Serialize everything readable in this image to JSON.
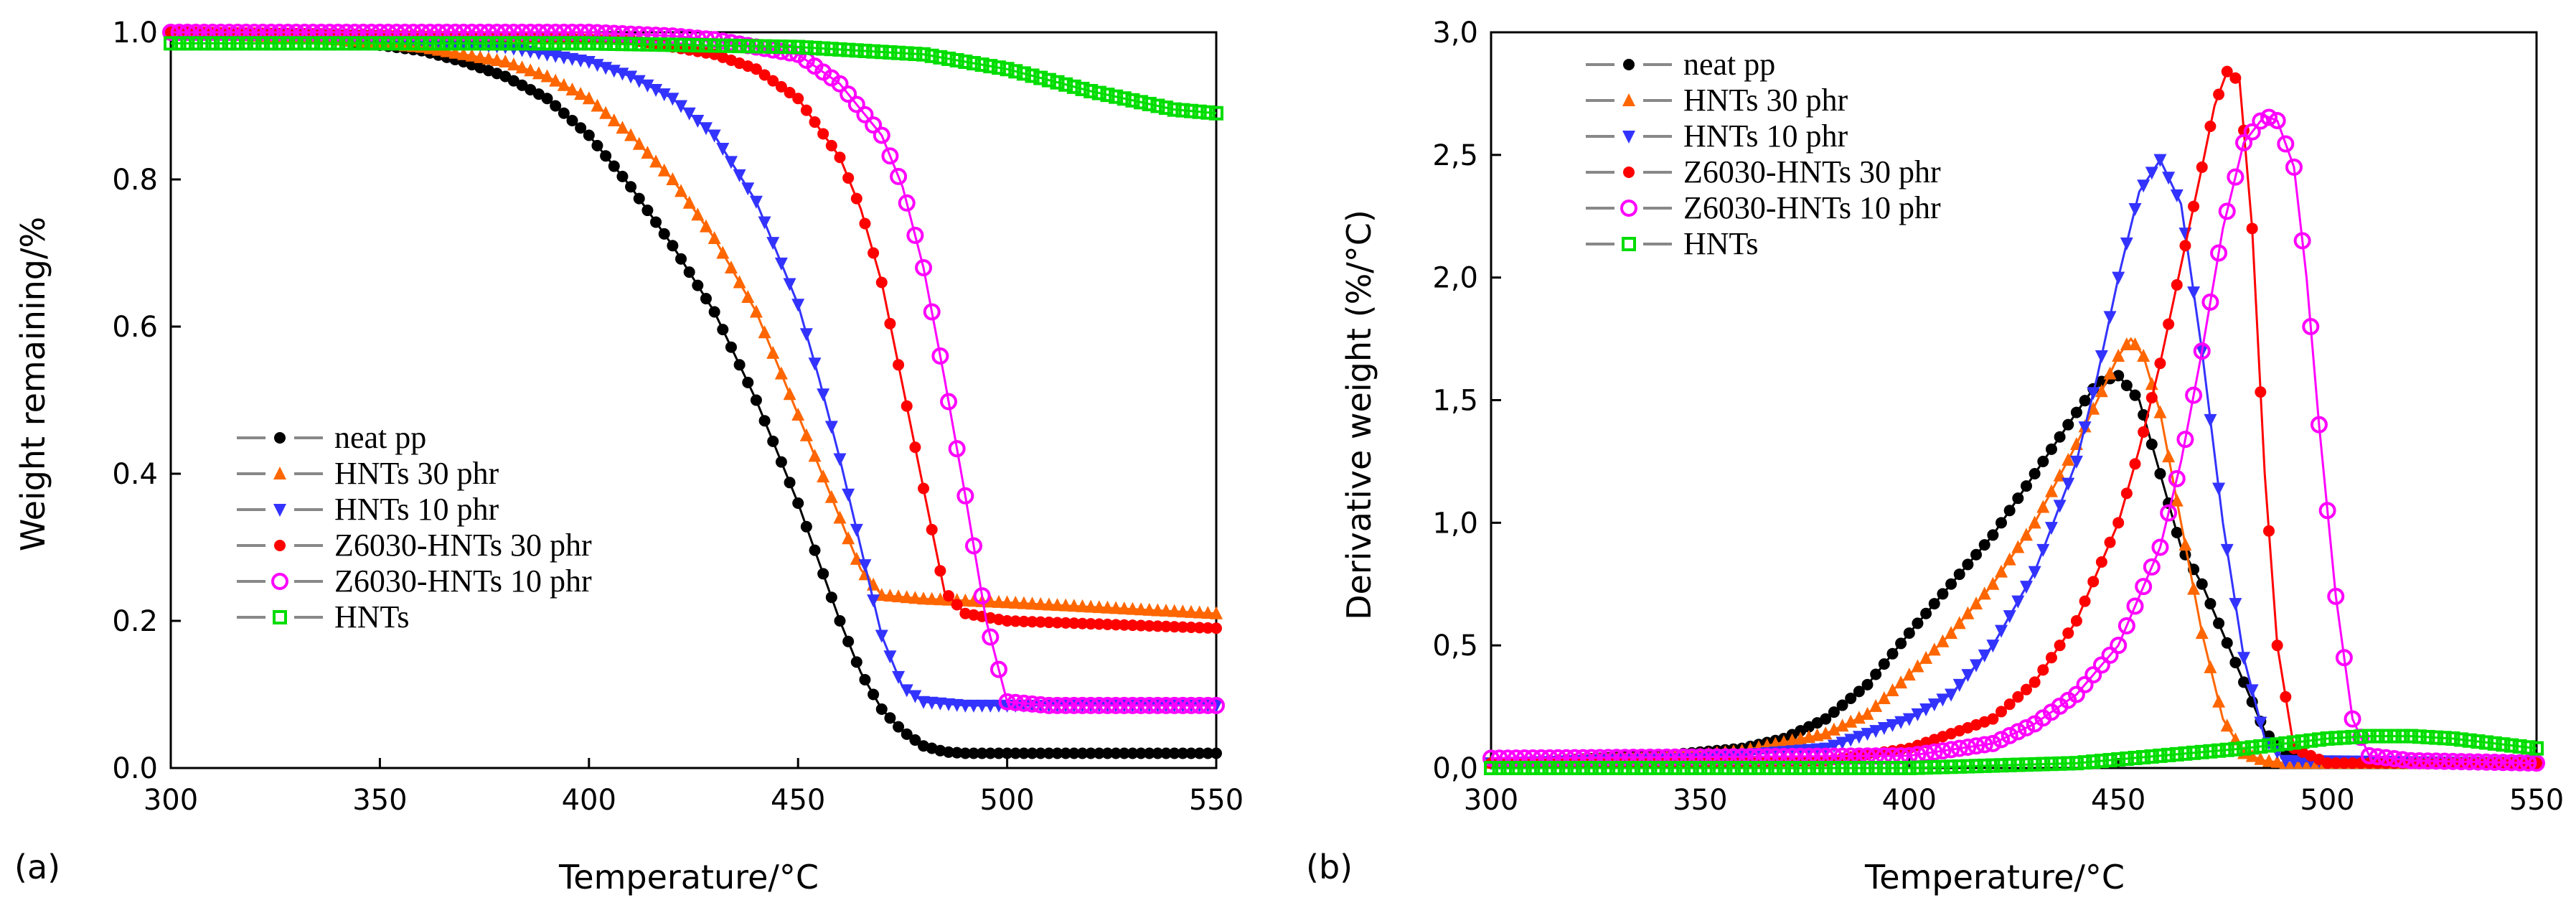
{
  "chart_data": [
    {
      "type": "line",
      "panel_label": "(a)",
      "xlabel": "Temperature/°C",
      "ylabel": "Weight remaining/%",
      "xlim": [
        300,
        550
      ],
      "ylim": [
        0.0,
        1.0
      ],
      "x_ticks": [
        300,
        350,
        400,
        450,
        500,
        550
      ],
      "x_tick_labels": [
        "300",
        "350",
        "400",
        "450",
        "500",
        "550"
      ],
      "y_ticks": [
        0.0,
        0.2,
        0.4,
        0.6,
        0.8,
        1.0
      ],
      "y_tick_labels": [
        "0.0",
        "0.2",
        "0.4",
        "0.6",
        "0.8",
        "1.0"
      ],
      "legend_position": "center-left",
      "series": [
        {
          "name": "neat pp",
          "color": "#000000",
          "marker": "circle",
          "x": [
            300,
            320,
            340,
            360,
            370,
            380,
            390,
            400,
            410,
            420,
            430,
            440,
            450,
            455,
            460,
            465,
            470,
            475,
            480,
            485,
            490,
            500,
            520,
            550
          ],
          "y": [
            1.0,
            0.995,
            0.99,
            0.975,
            0.96,
            0.94,
            0.91,
            0.86,
            0.79,
            0.71,
            0.62,
            0.5,
            0.36,
            0.28,
            0.2,
            0.13,
            0.08,
            0.05,
            0.03,
            0.022,
            0.02,
            0.02,
            0.02,
            0.02
          ]
        },
        {
          "name": "HNTs 30 phr",
          "color": "#ff6600",
          "marker": "triangle-up",
          "x": [
            300,
            340,
            360,
            380,
            390,
            400,
            410,
            420,
            430,
            440,
            450,
            460,
            465,
            470,
            480,
            500,
            550
          ],
          "y": [
            1.0,
            0.99,
            0.98,
            0.96,
            0.94,
            0.91,
            0.86,
            0.8,
            0.72,
            0.62,
            0.48,
            0.34,
            0.27,
            0.235,
            0.23,
            0.225,
            0.21
          ]
        },
        {
          "name": "HNTs 10 phr",
          "color": "#3333ff",
          "marker": "triangle-down",
          "x": [
            300,
            350,
            380,
            400,
            410,
            420,
            430,
            440,
            450,
            455,
            460,
            465,
            470,
            475,
            480,
            490,
            500,
            550
          ],
          "y": [
            1.0,
            0.995,
            0.98,
            0.96,
            0.94,
            0.91,
            0.86,
            0.77,
            0.63,
            0.53,
            0.42,
            0.3,
            0.18,
            0.11,
            0.09,
            0.085,
            0.085,
            0.085
          ]
        },
        {
          "name": "Z6030-HNTs 30 phr",
          "color": "#ff0000",
          "marker": "circle",
          "x": [
            300,
            380,
            410,
            420,
            430,
            440,
            450,
            460,
            465,
            470,
            475,
            480,
            485,
            490,
            500,
            550
          ],
          "y": [
            1.0,
            0.995,
            0.99,
            0.98,
            0.97,
            0.95,
            0.91,
            0.83,
            0.76,
            0.66,
            0.52,
            0.38,
            0.24,
            0.21,
            0.2,
            0.19
          ]
        },
        {
          "name": "Z6030-HNTs 10 phr",
          "color": "#ff00ff",
          "marker": "circle-open",
          "x": [
            300,
            400,
            420,
            430,
            440,
            450,
            460,
            470,
            475,
            480,
            485,
            490,
            495,
            500,
            510,
            550
          ],
          "y": [
            1.0,
            1.0,
            0.995,
            0.99,
            0.98,
            0.97,
            0.93,
            0.86,
            0.79,
            0.68,
            0.53,
            0.37,
            0.2,
            0.09,
            0.085,
            0.085
          ]
        },
        {
          "name": "HNTs",
          "color": "#00dd00",
          "marker": "square-open",
          "x": [
            300,
            350,
            400,
            450,
            480,
            500,
            520,
            540,
            550
          ],
          "y": [
            0.985,
            0.985,
            0.985,
            0.98,
            0.97,
            0.95,
            0.92,
            0.895,
            0.89
          ]
        }
      ]
    },
    {
      "type": "line",
      "panel_label": "(b)",
      "xlabel": "Temperature/°C",
      "ylabel": "Derivative weight (%/°C)",
      "xlim": [
        300,
        550
      ],
      "ylim": [
        0.0,
        3.0
      ],
      "x_ticks": [
        300,
        350,
        400,
        450,
        500,
        550
      ],
      "x_tick_labels": [
        "300",
        "350",
        "400",
        "450",
        "500",
        "550"
      ],
      "y_ticks": [
        0.0,
        0.5,
        1.0,
        1.5,
        2.0,
        2.5,
        3.0
      ],
      "y_tick_labels": [
        "0,0",
        "0,5",
        "1,0",
        "1,5",
        "2,0",
        "2,5",
        "3,0"
      ],
      "legend_position": "top-left",
      "series": [
        {
          "name": "neat pp",
          "color": "#000000",
          "marker": "circle",
          "x": [
            300,
            340,
            360,
            370,
            380,
            390,
            400,
            410,
            420,
            430,
            440,
            445,
            450,
            455,
            460,
            465,
            470,
            475,
            480,
            485,
            490,
            500,
            550
          ],
          "y": [
            0.02,
            0.05,
            0.08,
            0.12,
            0.2,
            0.34,
            0.55,
            0.75,
            0.95,
            1.2,
            1.45,
            1.57,
            1.6,
            1.5,
            1.2,
            0.9,
            0.75,
            0.55,
            0.35,
            0.15,
            0.05,
            0.02,
            0.02
          ]
        },
        {
          "name": "HNTs 30 phr",
          "color": "#ff6600",
          "marker": "triangle-up",
          "x": [
            300,
            340,
            360,
            380,
            390,
            400,
            410,
            420,
            430,
            440,
            445,
            450,
            453,
            456,
            460,
            465,
            470,
            475,
            480,
            485,
            490,
            550
          ],
          "y": [
            0.02,
            0.04,
            0.07,
            0.14,
            0.22,
            0.38,
            0.55,
            0.75,
            1.0,
            1.32,
            1.5,
            1.68,
            1.75,
            1.68,
            1.45,
            1.0,
            0.55,
            0.2,
            0.06,
            0.03,
            0.02,
            0.02
          ]
        },
        {
          "name": "HNTs 10 phr",
          "color": "#3333ff",
          "marker": "triangle-down",
          "x": [
            300,
            350,
            380,
            400,
            410,
            420,
            430,
            440,
            445,
            450,
            455,
            460,
            465,
            470,
            475,
            480,
            485,
            490,
            550
          ],
          "y": [
            0.02,
            0.04,
            0.08,
            0.2,
            0.3,
            0.5,
            0.8,
            1.25,
            1.6,
            2.0,
            2.35,
            2.48,
            2.3,
            1.7,
            1.0,
            0.45,
            0.12,
            0.03,
            0.02
          ]
        },
        {
          "name": "Z6030-HNTs 30 phr",
          "color": "#ff0000",
          "marker": "circle",
          "x": [
            300,
            380,
            400,
            420,
            430,
            440,
            450,
            455,
            460,
            465,
            470,
            473,
            476,
            479,
            482,
            485,
            488,
            492,
            500,
            550
          ],
          "y": [
            0.02,
            0.03,
            0.08,
            0.2,
            0.35,
            0.6,
            1.0,
            1.3,
            1.65,
            2.05,
            2.45,
            2.7,
            2.84,
            2.8,
            2.2,
            1.2,
            0.5,
            0.08,
            0.02,
            0.02
          ]
        },
        {
          "name": "Z6030-HNTs 10 phr",
          "color": "#ff00ff",
          "marker": "circle-open",
          "x": [
            300,
            400,
            420,
            430,
            440,
            450,
            460,
            465,
            470,
            475,
            480,
            485,
            488,
            492,
            495,
            498,
            502,
            506,
            510,
            520,
            550
          ],
          "y": [
            0.04,
            0.05,
            0.1,
            0.18,
            0.3,
            0.5,
            0.9,
            1.25,
            1.7,
            2.2,
            2.55,
            2.66,
            2.64,
            2.45,
            2.0,
            1.4,
            0.7,
            0.2,
            0.05,
            0.03,
            0.02
          ]
        },
        {
          "name": "HNTs",
          "color": "#00dd00",
          "marker": "square-open",
          "x": [
            300,
            400,
            440,
            460,
            480,
            500,
            510,
            520,
            530,
            540,
            550
          ],
          "y": [
            0.0,
            0.0,
            0.02,
            0.05,
            0.08,
            0.12,
            0.13,
            0.13,
            0.12,
            0.1,
            0.08
          ]
        }
      ]
    }
  ]
}
